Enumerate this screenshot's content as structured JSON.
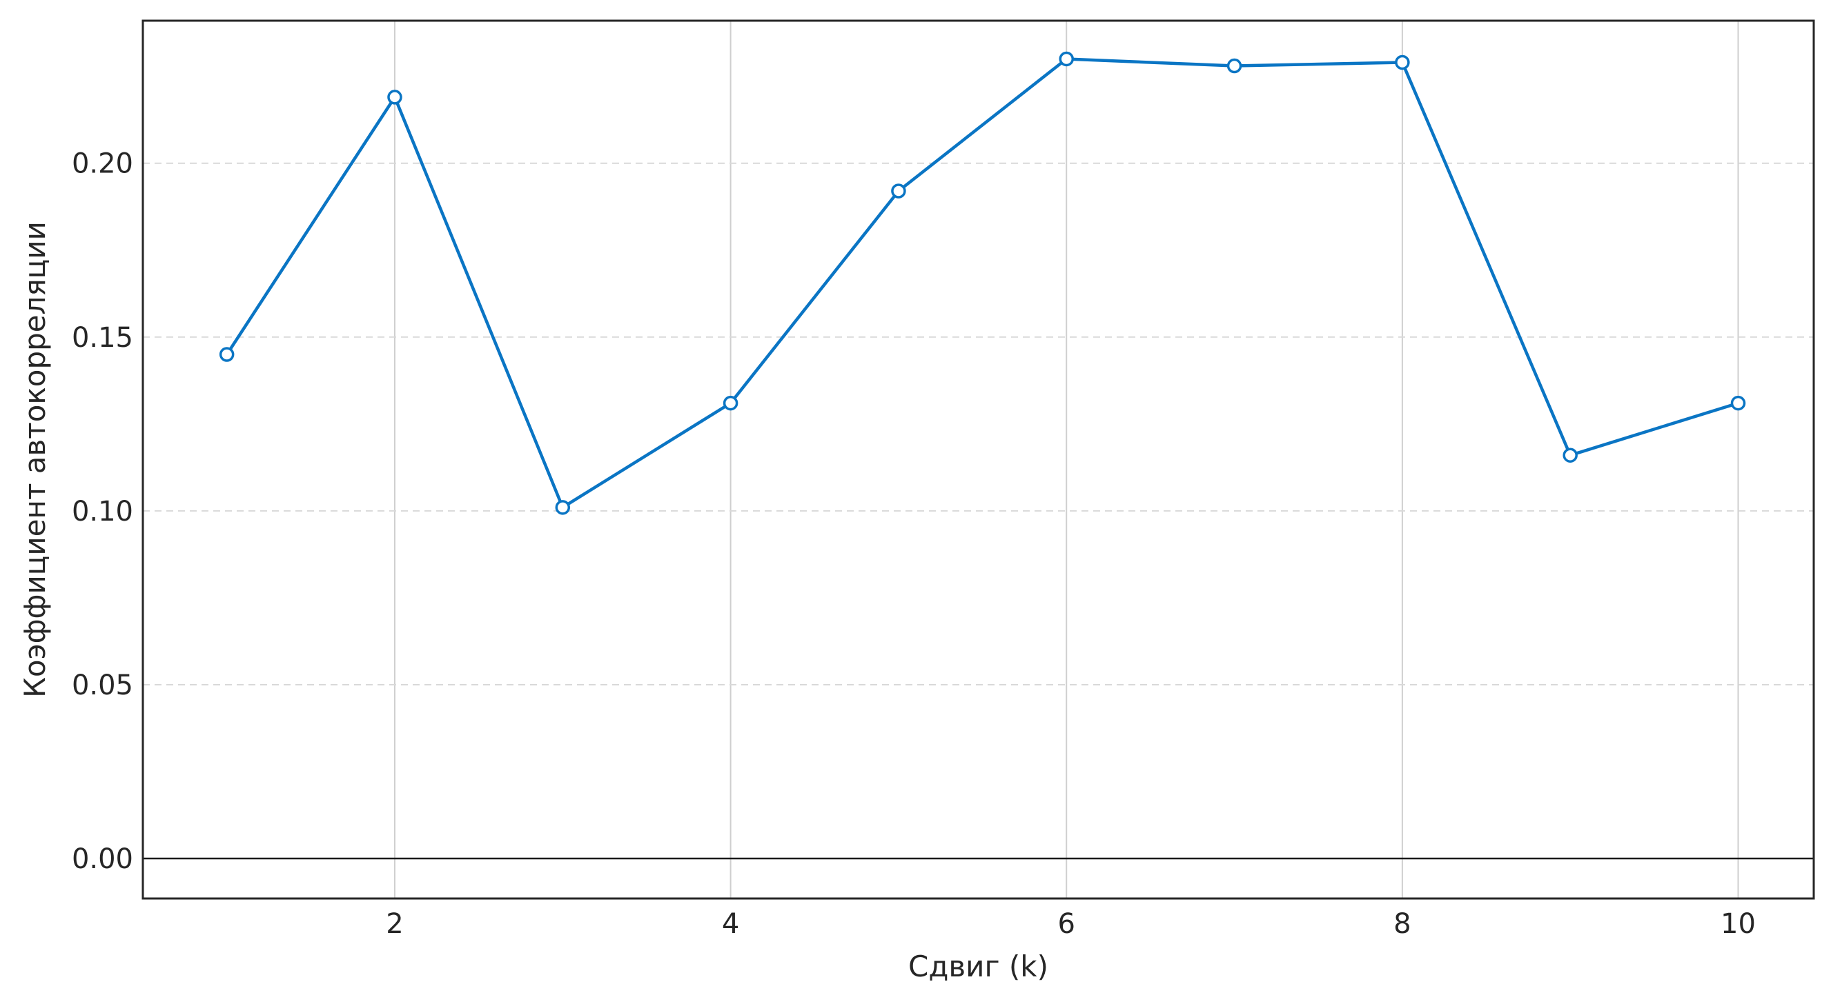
{
  "chart_data": {
    "type": "line",
    "title": "",
    "xlabel": "Сдвиг (k)",
    "ylabel": "Коэффициент автокорреляции",
    "x": [
      1,
      2,
      3,
      4,
      5,
      6,
      7,
      8,
      9,
      10
    ],
    "series": [
      {
        "values": [
          0.145,
          0.219,
          0.101,
          0.131,
          0.192,
          0.23,
          0.228,
          0.229,
          0.116,
          0.131
        ],
        "color": "#0a75c4"
      }
    ],
    "xlim": [
      0.5,
      10.45
    ],
    "ylim": [
      -0.0115,
      0.241
    ],
    "xticks": [
      2,
      4,
      6,
      8,
      10
    ],
    "xtick_labels": [
      "2",
      "4",
      "6",
      "8",
      "10"
    ],
    "yticks": [
      0.0,
      0.05,
      0.1,
      0.15,
      0.2
    ],
    "ytick_labels": [
      "0.00",
      "0.05",
      "0.10",
      "0.15",
      "0.20"
    ],
    "grid": {
      "x": "solid",
      "y": "dashed"
    },
    "reference_line_y": 0.0,
    "legend": "none",
    "marker": "open-circle"
  }
}
